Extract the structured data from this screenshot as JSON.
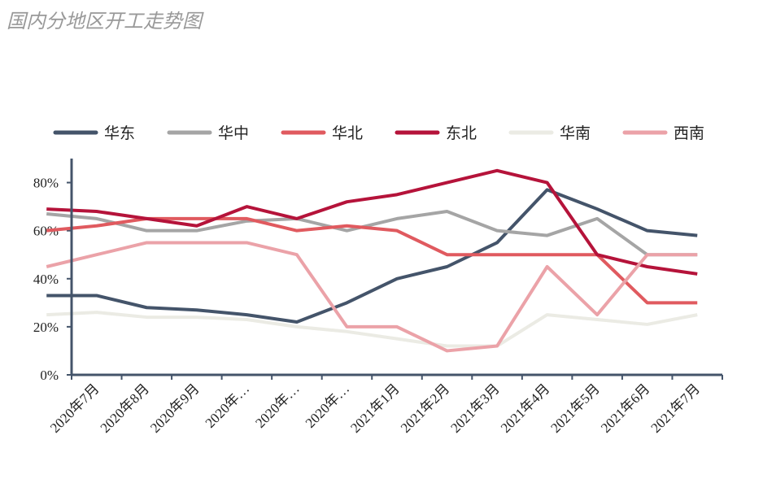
{
  "chart_data": {
    "type": "line",
    "title": "国内分地区开工走势图",
    "categories": [
      null,
      "2020年7月",
      "2020年8月",
      "2020年9月",
      "2020年…",
      "2020年…",
      "2020年…",
      "2021年1月",
      "2021年2月",
      "2021年3月",
      "2021年4月",
      "2021年5月",
      "2021年6月",
      "2021年7月"
    ],
    "series": [
      {
        "name": "华东",
        "color": "#44546a",
        "values": [
          33,
          33,
          28,
          27,
          25,
          22,
          30,
          40,
          45,
          55,
          77,
          69,
          60,
          58
        ]
      },
      {
        "name": "华中",
        "color": "#a5a5a5",
        "values": [
          67,
          65,
          60,
          60,
          64,
          65,
          60,
          65,
          68,
          60,
          58,
          65,
          50,
          50
        ]
      },
      {
        "name": "华北",
        "color": "#e05a5f",
        "values": [
          60,
          62,
          65,
          65,
          65,
          60,
          62,
          60,
          50,
          50,
          50,
          50,
          30,
          30
        ]
      },
      {
        "name": "东北",
        "color": "#b5133a",
        "values": [
          69,
          68,
          65,
          62,
          70,
          65,
          72,
          75,
          80,
          85,
          80,
          50,
          45,
          42
        ]
      },
      {
        "name": "华南",
        "color": "#ebebe4",
        "values": [
          25,
          26,
          24,
          24,
          23,
          20,
          18,
          15,
          12,
          12,
          25,
          23,
          21,
          25
        ]
      },
      {
        "name": "西南",
        "color": "#eba2a8",
        "values": [
          45,
          50,
          55,
          55,
          55,
          50,
          20,
          20,
          10,
          12,
          45,
          25,
          50,
          50
        ]
      }
    ],
    "ylim": [
      0,
      90
    ],
    "yticks": [
      {
        "value": 0,
        "label": "0%"
      },
      {
        "value": 20,
        "label": "20%"
      },
      {
        "value": 40,
        "label": "40%"
      },
      {
        "value": 60,
        "label": "60%"
      },
      {
        "value": 80,
        "label": "80%"
      }
    ],
    "legend": "top"
  }
}
